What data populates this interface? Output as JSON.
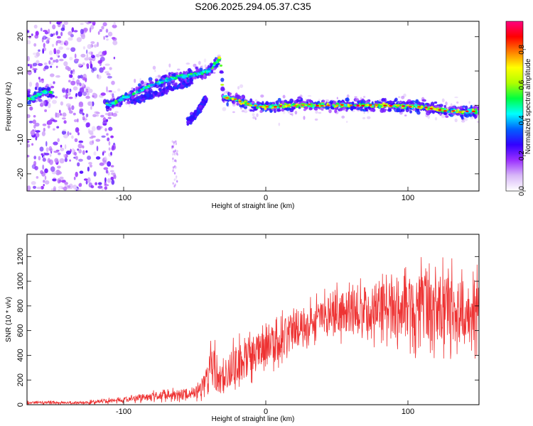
{
  "title": "S206.2025.294.05.37.C35",
  "chart_data": [
    {
      "type": "heatmap",
      "title": "S206.2025.294.05.37.C35",
      "xlabel": "Height of straight line (km)",
      "ylabel": "Frequency (Hz)",
      "xlim": [
        -168,
        150
      ],
      "ylim": [
        -25,
        24.5
      ],
      "xticks": [
        -100,
        0,
        100
      ],
      "yticks": [
        -20,
        -10,
        0,
        10,
        20
      ],
      "colorbar": {
        "label": "Normalized spectral amplitude",
        "range": [
          0.0,
          0.96
        ],
        "ticks": [
          0.0,
          0.2,
          0.4,
          0.6,
          0.8
        ],
        "colormap": [
          "#ffffff",
          "#d8b8f8",
          "#9b30ff",
          "#3300ff",
          "#0060ff",
          "#00ffff",
          "#00ff40",
          "#b0ff00",
          "#ffff00",
          "#ff8000",
          "#ff0000",
          "#ff0080"
        ]
      },
      "ridge": [
        {
          "x": -165,
          "y": 2
        },
        {
          "x": -155,
          "y": 4
        },
        {
          "x": -110,
          "y": 0
        },
        {
          "x": -95,
          "y": 3
        },
        {
          "x": -80,
          "y": 6
        },
        {
          "x": -65,
          "y": 8
        },
        {
          "x": -50,
          "y": 9
        },
        {
          "x": -40,
          "y": 10
        },
        {
          "x": -32,
          "y": 14
        },
        {
          "x": -30,
          "y": 2.5
        },
        {
          "x": -20,
          "y": 1.5
        },
        {
          "x": -10,
          "y": 0
        },
        {
          "x": 0,
          "y": -0.5
        },
        {
          "x": 20,
          "y": 0
        },
        {
          "x": 50,
          "y": 0
        },
        {
          "x": 80,
          "y": 0
        },
        {
          "x": 110,
          "y": -0.5
        },
        {
          "x": 125,
          "y": -1.5
        },
        {
          "x": 140,
          "y": -2
        },
        {
          "x": 150,
          "y": -1.5
        }
      ],
      "branches": [
        {
          "x": [
            -95,
            -80,
            -65,
            -52
          ],
          "y": [
            1,
            3,
            5,
            7
          ]
        },
        {
          "x": [
            -55,
            -48,
            -42
          ],
          "y": [
            -5,
            -2,
            2
          ]
        }
      ]
    },
    {
      "type": "line",
      "xlabel": "Height of straight line (km)",
      "ylabel": "SNR (10 * v/v)",
      "xlim": [
        -168,
        150
      ],
      "ylim": [
        0,
        1380
      ],
      "xticks": [
        -100,
        0,
        100
      ],
      "yticks": [
        0,
        200,
        400,
        600,
        800,
        1000,
        1200
      ],
      "series": [
        {
          "name": "SNR",
          "color": "#ee3333",
          "envelope": [
            {
              "x": -168,
              "y": 20,
              "amp": 15
            },
            {
              "x": -130,
              "y": 15,
              "amp": 12
            },
            {
              "x": -100,
              "y": 40,
              "amp": 25
            },
            {
              "x": -80,
              "y": 70,
              "amp": 40
            },
            {
              "x": -60,
              "y": 80,
              "amp": 50
            },
            {
              "x": -45,
              "y": 120,
              "amp": 70
            },
            {
              "x": -38,
              "y": 280,
              "amp": 250
            },
            {
              "x": -30,
              "y": 200,
              "amp": 150
            },
            {
              "x": -20,
              "y": 350,
              "amp": 200
            },
            {
              "x": 0,
              "y": 450,
              "amp": 200
            },
            {
              "x": 20,
              "y": 600,
              "amp": 180
            },
            {
              "x": 40,
              "y": 720,
              "amp": 180
            },
            {
              "x": 60,
              "y": 760,
              "amp": 220
            },
            {
              "x": 80,
              "y": 800,
              "amp": 260
            },
            {
              "x": 100,
              "y": 800,
              "amp": 320
            },
            {
              "x": 120,
              "y": 780,
              "amp": 330
            },
            {
              "x": 150,
              "y": 760,
              "amp": 320
            }
          ]
        }
      ]
    }
  ]
}
